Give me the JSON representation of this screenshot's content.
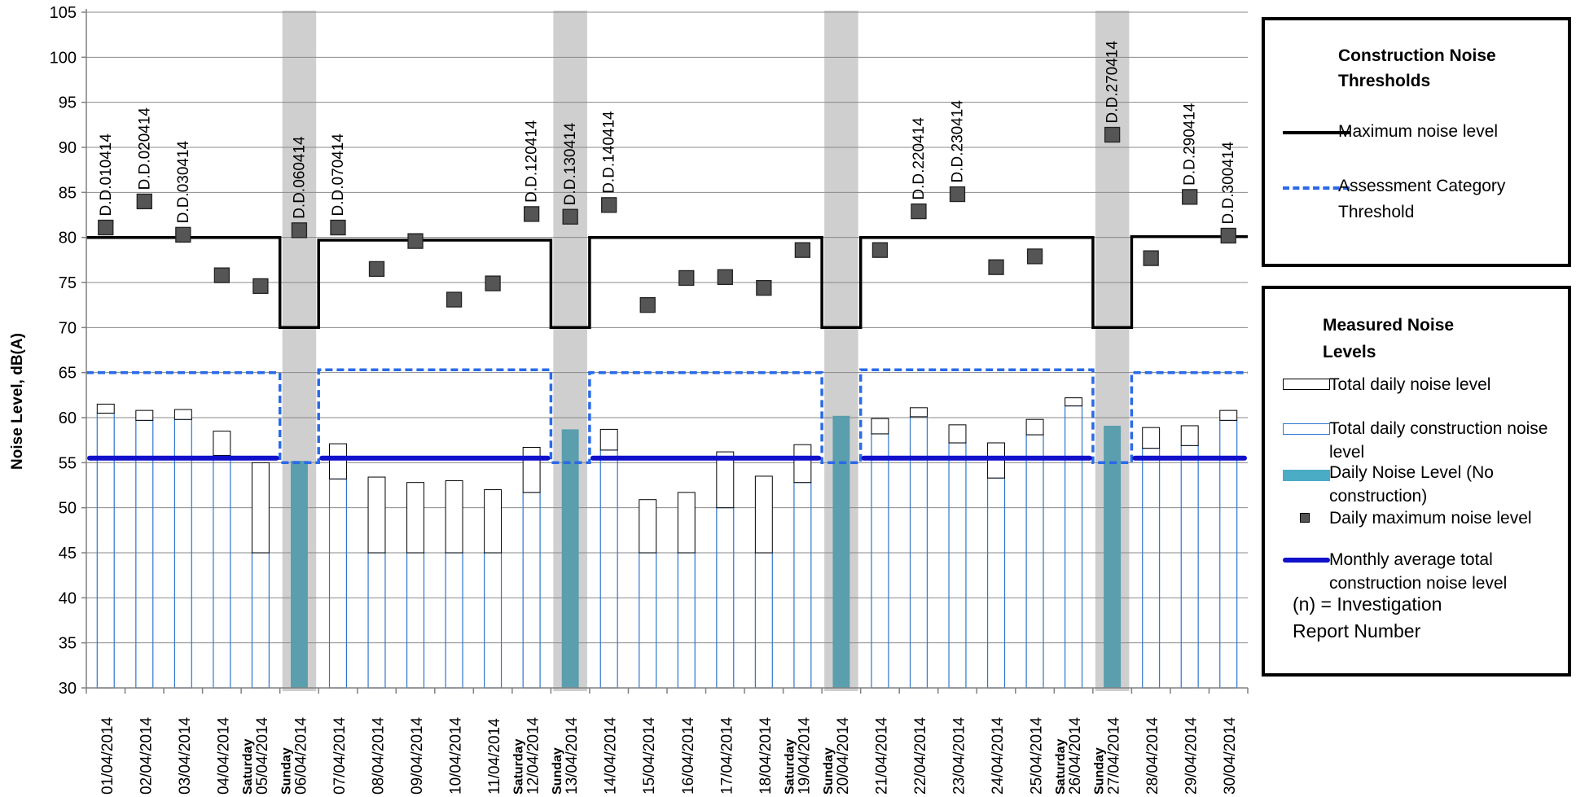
{
  "chart_data": {
    "type": "bar",
    "ylabel": "Noise Level, dB(A)",
    "ylim": [
      30,
      105
    ],
    "yticks": [
      30,
      35,
      40,
      45,
      50,
      55,
      60,
      65,
      70,
      75,
      80,
      85,
      90,
      95,
      100,
      105
    ],
    "grid": "horizontal",
    "categories": [
      {
        "date": "01/04/2014",
        "day": ""
      },
      {
        "date": "02/04/2014",
        "day": ""
      },
      {
        "date": "03/04/2014",
        "day": ""
      },
      {
        "date": "04/04/2014",
        "day": ""
      },
      {
        "date": "05/04/2014",
        "day": "Saturday"
      },
      {
        "date": "06/04/2014",
        "day": "Sunday"
      },
      {
        "date": "07/04/2014",
        "day": ""
      },
      {
        "date": "08/04/2014",
        "day": ""
      },
      {
        "date": "09/04/2014",
        "day": ""
      },
      {
        "date": "10/04/2014",
        "day": ""
      },
      {
        "date": "11/04/2014",
        "day": ""
      },
      {
        "date": "12/04/2014",
        "day": "Saturday"
      },
      {
        "date": "13/04/2014",
        "day": "Sunday"
      },
      {
        "date": "14/04/2014",
        "day": ""
      },
      {
        "date": "15/04/2014",
        "day": ""
      },
      {
        "date": "16/04/2014",
        "day": ""
      },
      {
        "date": "17/04/2014",
        "day": ""
      },
      {
        "date": "18/04/2014",
        "day": ""
      },
      {
        "date": "19/04/2014",
        "day": "Saturday"
      },
      {
        "date": "20/04/2014",
        "day": "Sunday"
      },
      {
        "date": "21/04/2014",
        "day": ""
      },
      {
        "date": "22/04/2014",
        "day": ""
      },
      {
        "date": "23/04/2014",
        "day": ""
      },
      {
        "date": "24/04/2014",
        "day": ""
      },
      {
        "date": "25/04/2014",
        "day": ""
      },
      {
        "date": "26/04/2014",
        "day": "Saturday"
      },
      {
        "date": "27/04/2014",
        "day": "Sunday"
      },
      {
        "date": "28/04/2014",
        "day": ""
      },
      {
        "date": "29/04/2014",
        "day": ""
      },
      {
        "date": "30/04/2014",
        "day": ""
      }
    ],
    "shaded_days": [
      5,
      12,
      19,
      26
    ],
    "series": [
      {
        "name": "Total daily noise level",
        "kind": "bar",
        "values": [
          61.5,
          60.8,
          60.9,
          58.5,
          55.0,
          null,
          57.1,
          53.4,
          52.8,
          53.0,
          52.0,
          56.7,
          null,
          58.7,
          50.9,
          51.7,
          56.2,
          53.5,
          57.0,
          null,
          59.9,
          61.1,
          59.2,
          57.2,
          59.8,
          62.2,
          null,
          58.9,
          59.1,
          60.8
        ],
        "color": "#000000"
      },
      {
        "name": "Total daily construction noise level",
        "kind": "bar",
        "values": [
          60.5,
          59.7,
          59.8,
          55.8,
          45.0,
          null,
          53.2,
          45.0,
          45.0,
          45.0,
          45.0,
          51.7,
          null,
          56.4,
          45.0,
          45.0,
          50.0,
          45.0,
          52.8,
          null,
          58.2,
          60.1,
          57.2,
          53.3,
          58.1,
          61.3,
          null,
          56.6,
          56.9,
          59.7
        ],
        "color": "#2e75d0"
      },
      {
        "name": "Daily Noise Level (No construction)",
        "kind": "bar",
        "values": [
          null,
          null,
          null,
          null,
          null,
          55.2,
          null,
          null,
          null,
          null,
          null,
          null,
          58.7,
          null,
          null,
          null,
          null,
          null,
          null,
          60.2,
          null,
          null,
          null,
          null,
          null,
          null,
          59.1,
          null,
          null,
          null
        ],
        "color": "#5b9eae"
      },
      {
        "name": "Daily maximum noise level",
        "kind": "scatter",
        "values": [
          81.1,
          84.0,
          80.3,
          75.8,
          74.6,
          80.8,
          81.1,
          76.5,
          79.6,
          73.1,
          74.9,
          82.6,
          82.3,
          83.6,
          72.5,
          75.5,
          75.6,
          74.4,
          78.6,
          null,
          78.6,
          82.9,
          84.8,
          76.7,
          77.9,
          null,
          91.4,
          77.7,
          84.5,
          80.2
        ],
        "color": "#555555"
      },
      {
        "name": "Maximum noise level",
        "kind": "line",
        "values": [
          80,
          80,
          80,
          80,
          80,
          70,
          79.7,
          79.7,
          79.7,
          79.7,
          79.7,
          79.7,
          70,
          80,
          80,
          80,
          80,
          80,
          80,
          70,
          80,
          80,
          80,
          80,
          80,
          80,
          70,
          80.1,
          80.1,
          80.1
        ],
        "color": "#000000"
      },
      {
        "name": "Assessment Category Threshold",
        "kind": "dashed-line",
        "values": [
          65,
          65,
          65,
          65,
          65,
          55,
          65.3,
          65.3,
          65.3,
          65.3,
          65.3,
          65.3,
          55,
          65,
          65,
          65,
          65,
          65,
          65,
          55,
          65.3,
          65.3,
          65.3,
          65.3,
          65.3,
          65.3,
          55,
          65,
          65,
          65
        ],
        "color": "#2a6ae8"
      },
      {
        "name": "Monthly average total construction noise level",
        "kind": "segments",
        "value": 55.5,
        "ranges": [
          [
            0,
            4
          ],
          [
            6,
            11
          ],
          [
            13,
            18
          ],
          [
            20,
            25
          ],
          [
            27,
            29
          ]
        ],
        "color": "#1111cc"
      }
    ],
    "annotations": [
      {
        "index": 0,
        "text": "D.D.010414"
      },
      {
        "index": 1,
        "text": "D.D.020414"
      },
      {
        "index": 2,
        "text": "D.D.030414"
      },
      {
        "index": 5,
        "text": "D.D.060414"
      },
      {
        "index": 6,
        "text": "D.D.070414"
      },
      {
        "index": 11,
        "text": "D.D.120414"
      },
      {
        "index": 12,
        "text": "D.D.130414"
      },
      {
        "index": 13,
        "text": "D.D.140414"
      },
      {
        "index": 21,
        "text": "D.D.220414"
      },
      {
        "index": 22,
        "text": "D.D.230414"
      },
      {
        "index": 26,
        "text": "D.D.270414"
      },
      {
        "index": 28,
        "text": "D.D.290414"
      },
      {
        "index": 29,
        "text": "D.D.300414"
      }
    ]
  },
  "legend_thresholds": {
    "title": "Construction Noise Thresholds",
    "max_label": "Maximum noise level",
    "assess_label": "Assessment Category Threshold"
  },
  "legend_measured": {
    "title": "Measured Noise Levels",
    "total_label": "Total daily noise level",
    "construction_label": "Total daily construction noise level",
    "noconstr_label": "Daily Noise Level (No construction)",
    "max_label": "Daily maximum noise level",
    "monthly_label": "Monthly average total construction noise level",
    "note": "(n) = Investigation Report Number"
  }
}
